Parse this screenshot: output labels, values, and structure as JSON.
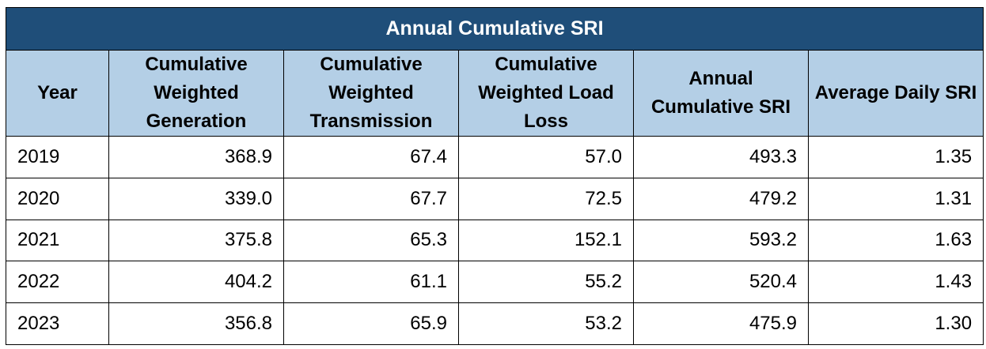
{
  "title": "Annual Cumulative SRI",
  "columns": [
    "Year",
    "Cumulative Weighted Generation",
    "Cumulative Weighted Transmission",
    "Cumulative Weighted Load Loss",
    "Annual Cumulative SRI",
    "Average Daily SRI"
  ],
  "rows": [
    {
      "year": "2019",
      "generation": "368.9",
      "transmission": "67.4",
      "load_loss": "57.0",
      "annual_sri": "493.3",
      "daily_sri": "1.35"
    },
    {
      "year": "2020",
      "generation": "339.0",
      "transmission": "67.7",
      "load_loss": "72.5",
      "annual_sri": "479.2",
      "daily_sri": "1.31"
    },
    {
      "year": "2021",
      "generation": "375.8",
      "transmission": "65.3",
      "load_loss": "152.1",
      "annual_sri": "593.2",
      "daily_sri": "1.63"
    },
    {
      "year": "2022",
      "generation": "404.2",
      "transmission": "61.1",
      "load_loss": "55.2",
      "annual_sri": "520.4",
      "daily_sri": "1.43"
    },
    {
      "year": "2023",
      "generation": "356.8",
      "transmission": "65.9",
      "load_loss": "53.2",
      "annual_sri": "475.9",
      "daily_sri": "1.30"
    }
  ],
  "colors": {
    "title_background": "#1f4e79",
    "header_background": "#b4cfe6",
    "title_text": "#ffffff",
    "border": "#000000"
  }
}
